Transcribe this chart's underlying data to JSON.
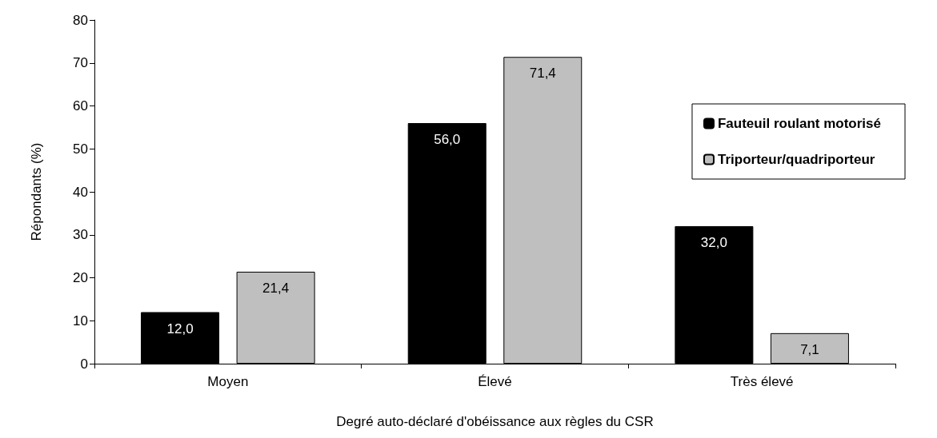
{
  "chart_data": {
    "type": "bar",
    "xlabel": "Degré auto-déclaré d'obéissance aux règles du CSR",
    "ylabel": "Répondants (%)",
    "categories": [
      "Moyen",
      "Élevé",
      "Très élevé"
    ],
    "series": [
      {
        "name": "Fauteuil roulant motorisé",
        "color": "#000000",
        "values": [
          12.0,
          56.0,
          32.0
        ],
        "value_labels": [
          "12,0",
          "56,0",
          "32,0"
        ]
      },
      {
        "name": "Triporteur/quadriporteur",
        "color": "#bfbfbf",
        "values": [
          21.4,
          71.4,
          7.1
        ],
        "value_labels": [
          "21,4",
          "71,4",
          "7,1"
        ]
      }
    ],
    "ylim": [
      0,
      80
    ],
    "yticks": [
      0,
      10,
      20,
      30,
      40,
      50,
      60,
      70,
      80
    ],
    "grid": false,
    "legend": "top right"
  }
}
